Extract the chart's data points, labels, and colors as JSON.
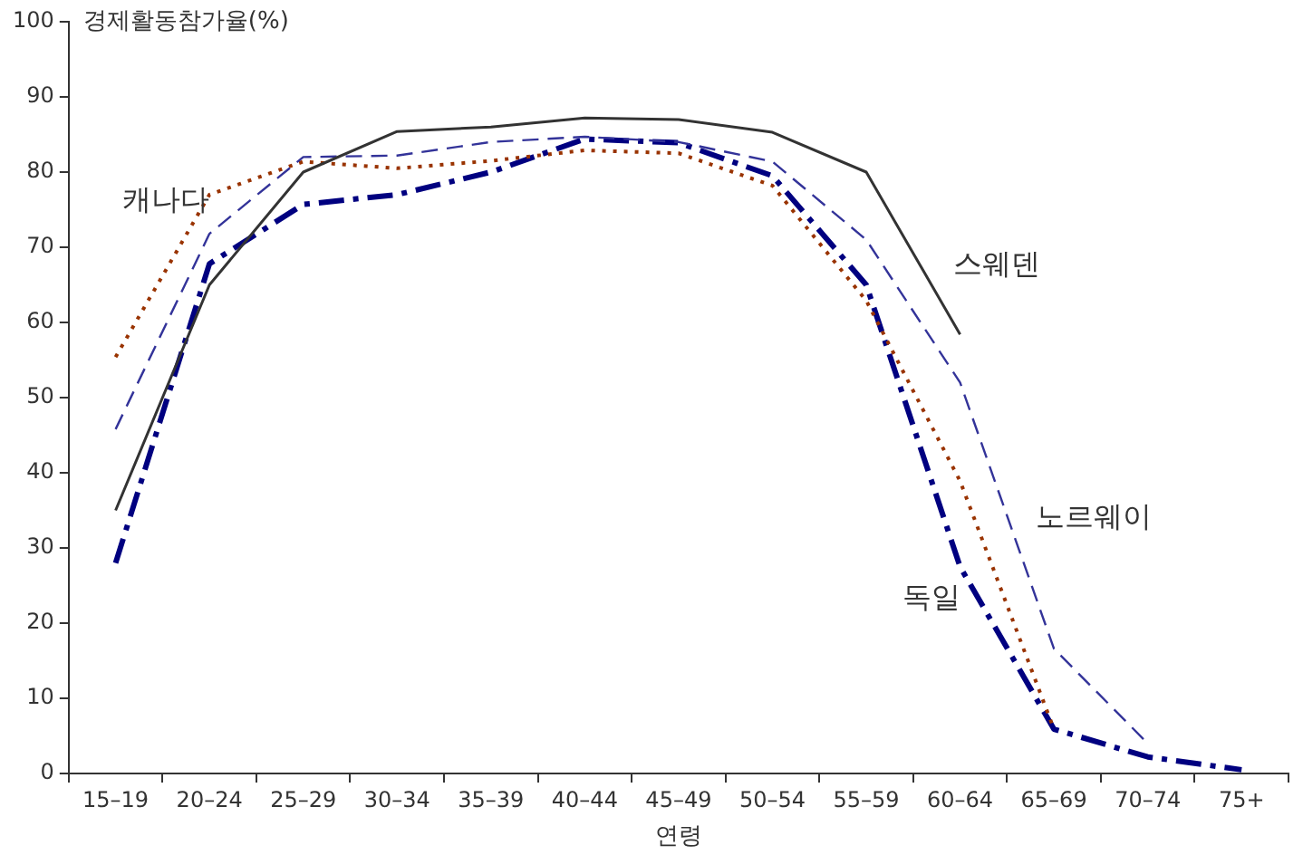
{
  "chart_data": {
    "type": "line",
    "ylabel": "경제활동참가율(%)",
    "xlabel": "연령",
    "categories": [
      "15–19",
      "20–24",
      "25–29",
      "30–34",
      "35–39",
      "40–44",
      "45–49",
      "50–54",
      "55–59",
      "60–64",
      "65–69",
      "70–74",
      "75+"
    ],
    "ylim": [
      0,
      100
    ],
    "yticks": [
      0,
      10,
      20,
      30,
      40,
      50,
      60,
      70,
      80,
      90,
      100
    ],
    "grid": false,
    "legend": false,
    "marker": "none",
    "series": [
      {
        "name": "스웨덴",
        "color": "#333333",
        "line_style": "solid",
        "values": [
          35,
          65,
          80,
          85.4,
          86,
          87.2,
          87,
          85.3,
          80,
          58.4,
          null,
          null,
          null
        ]
      },
      {
        "name": "노르웨이",
        "color": "#333399",
        "line_style": "dashed",
        "values": [
          45.8,
          71.8,
          82,
          82.2,
          84,
          84.7,
          84,
          81.4,
          71,
          52,
          16.6,
          4,
          null
        ]
      },
      {
        "name": "캐나다",
        "color": "#993300",
        "line_style": "dotted",
        "values": [
          55.4,
          77,
          81.4,
          80.5,
          81.5,
          82.9,
          82.5,
          78.2,
          62.9,
          38.9,
          5.9,
          null,
          null
        ]
      },
      {
        "name": "독일",
        "color": "#000080",
        "line_style": "dashdot",
        "values": [
          28,
          67.8,
          75.7,
          77,
          80,
          84.4,
          83.9,
          79.5,
          65,
          27.5,
          5.9,
          2.2,
          0.5
        ]
      }
    ]
  }
}
